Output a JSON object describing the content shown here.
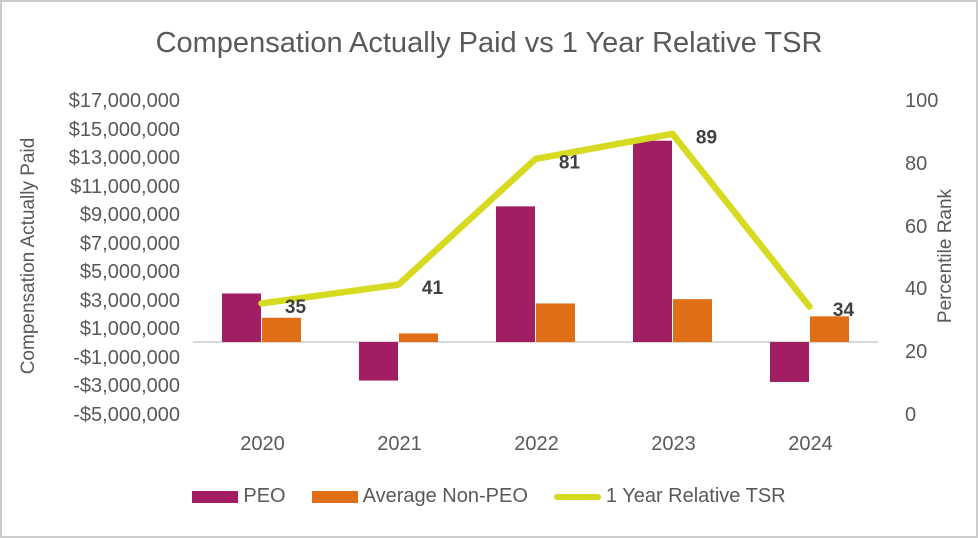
{
  "chart": {
    "title": "Compensation Actually Paid vs 1 Year Relative TSR"
  },
  "left_axis": {
    "title": "Compensation Actually Paid",
    "ticks": [
      "$17,000,000",
      "$15,000,000",
      "$13,000,000",
      "$11,000,000",
      "$9,000,000",
      "$7,000,000",
      "$5,000,000",
      "$3,000,000",
      "$1,000,000",
      "-$1,000,000",
      "-$3,000,000",
      "-$5,000,000"
    ]
  },
  "right_axis": {
    "title": "Percentile Rank",
    "ticks": [
      "100",
      "80",
      "60",
      "40",
      "20",
      "0"
    ]
  },
  "x_axis": {
    "labels": [
      "2020",
      "2021",
      "2022",
      "2023",
      "2024"
    ]
  },
  "legend": {
    "items": [
      {
        "label": "PEO",
        "color": "#A21E63",
        "type": "swatch"
      },
      {
        "label": "Average Non-PEO",
        "color": "#DF6E16",
        "type": "swatch"
      },
      {
        "label": "1 Year Relative TSR",
        "color": "#D6DB21",
        "type": "line"
      }
    ]
  },
  "colors": {
    "peo_bar": "#A21E63",
    "non_peo_bar": "#DF6E16",
    "tsr_line": "#D6DB21",
    "axis_text": "#595959",
    "data_label": "#404040",
    "zero_line": "#D9D9D9",
    "border": "#cbcbcb"
  },
  "chart_data": {
    "type": "combo",
    "title": "Compensation Actually Paid vs 1 Year Relative TSR",
    "categories": [
      "2020",
      "2021",
      "2022",
      "2023",
      "2024"
    ],
    "series": [
      {
        "name": "PEO",
        "type": "bar",
        "axis": "left",
        "color": "#A21E63",
        "values": [
          3400000,
          -2700000,
          9500000,
          14100000,
          -2800000
        ]
      },
      {
        "name": "Average Non-PEO",
        "type": "bar",
        "axis": "left",
        "color": "#DF6E16",
        "values": [
          1700000,
          600000,
          2700000,
          3000000,
          1800000
        ]
      },
      {
        "name": "1 Year Relative TSR",
        "type": "line",
        "axis": "right",
        "color": "#D6DB21",
        "values": [
          35,
          41,
          81,
          89,
          34
        ],
        "labels": [
          "35",
          "41",
          "81",
          "89",
          "34"
        ]
      }
    ],
    "left_ylabel": "Compensation Actually Paid",
    "right_ylabel": "Percentile Rank",
    "left_ylim": [
      -5000000,
      17000000
    ],
    "left_tick_step": 2000000,
    "right_ylim": [
      0,
      100
    ],
    "right_tick_step": 20,
    "grid": false,
    "legend_position": "bottom"
  }
}
